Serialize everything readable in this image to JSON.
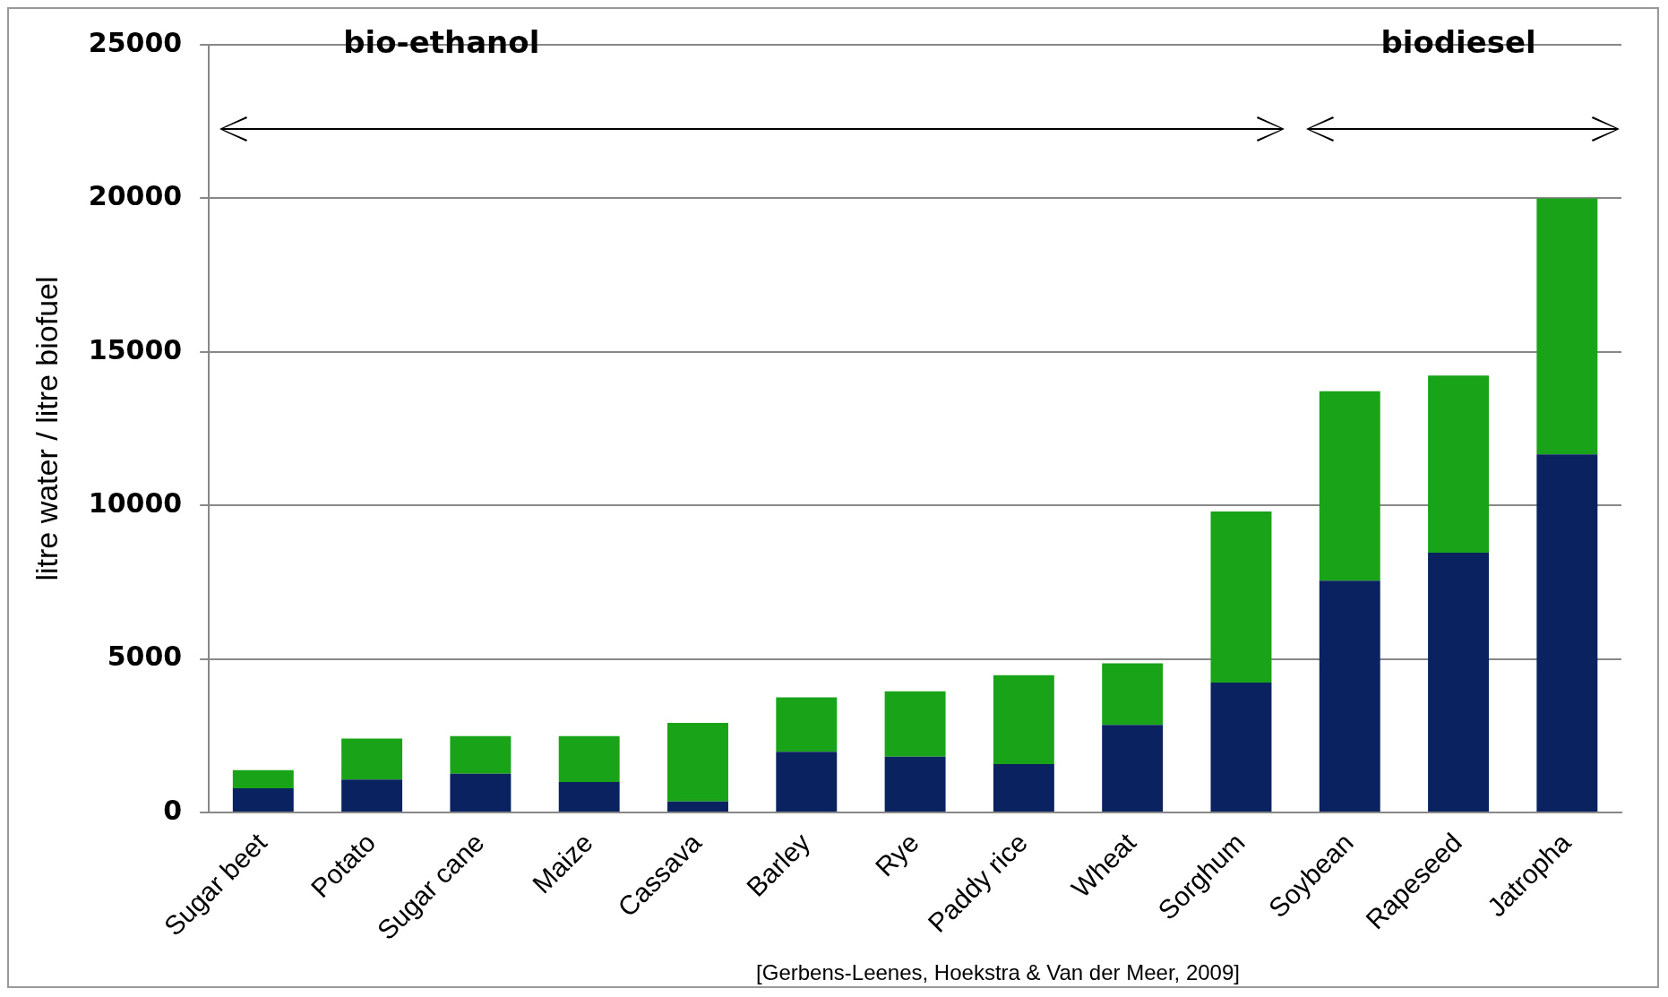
{
  "chart_data": {
    "type": "bar",
    "stacked": true,
    "ylabel": "litre water / litre biofuel",
    "categories": [
      "Sugar beet",
      "Potato",
      "Sugar cane",
      "Maize",
      "Cassava",
      "Barley",
      "Rye",
      "Paddy rice",
      "Wheat",
      "Sorghum",
      "Soybean",
      "Rapeseed",
      "Jatropha"
    ],
    "series": [
      {
        "color": "#0b2260",
        "values": [
          790,
          1070,
          1260,
          990,
          360,
          1980,
          1820,
          1580,
          2850,
          4230,
          7550,
          8460,
          11660
        ]
      },
      {
        "color": "#19a319",
        "values": [
          590,
          1340,
          1230,
          1500,
          2560,
          1770,
          2130,
          2890,
          2010,
          5570,
          6170,
          5770,
          8340
        ]
      }
    ],
    "ylim": [
      0,
      25000
    ],
    "yticks": [
      0,
      5000,
      10000,
      15000,
      20000,
      25000
    ],
    "grid": "y",
    "legend": false,
    "annotations": [
      "bio-ethanol",
      "biodiesel",
      "[Gerbens-Leenes, Hoekstra & Van der Meer, 2009]"
    ]
  }
}
